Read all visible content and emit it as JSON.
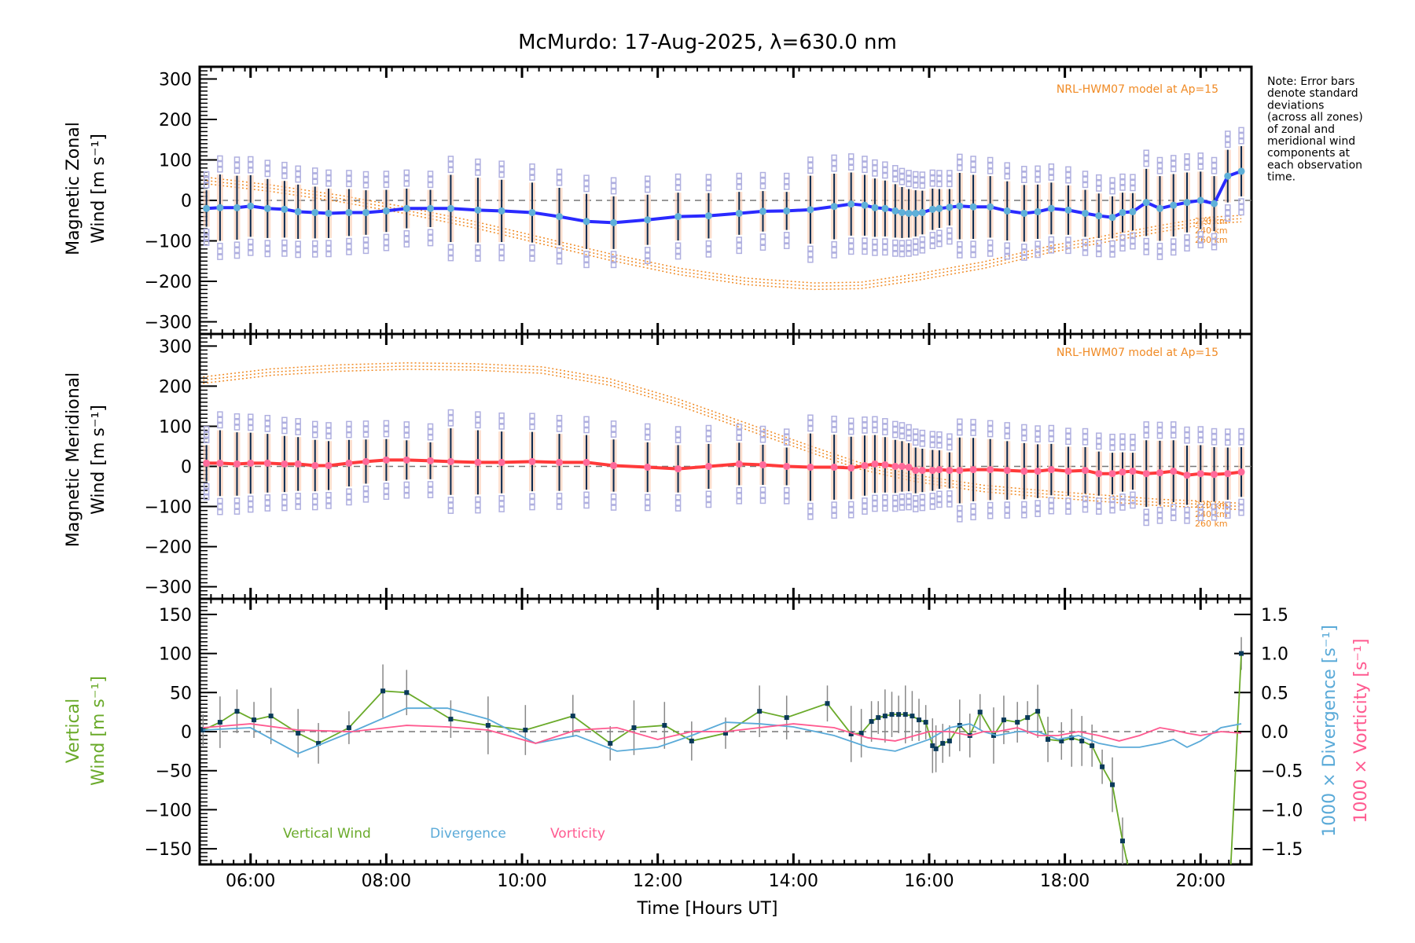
{
  "chart_data": [
    {
      "id": "zonal",
      "type": "line",
      "title": "McMurdo: 17-Aug-2025, λ=630.0 nm",
      "ylabel_line1": "Magnetic Zonal",
      "ylabel_line2": "Wind [m s⁻¹]",
      "ylim": [
        -330,
        330
      ],
      "yticks": [
        -300,
        -200,
        -100,
        0,
        100,
        200,
        300
      ],
      "model_label": "NRL-HWM07 model at Ap=15",
      "model_altitudes": [
        "220 km",
        "240 km",
        "260 km"
      ],
      "series_color": "#2a2aff",
      "marker_color": "#5fb0d8",
      "model_color": "#f08a24",
      "x": [
        5.35,
        5.55,
        5.8,
        6.0,
        6.25,
        6.5,
        6.7,
        6.95,
        7.15,
        7.45,
        7.7,
        8.0,
        8.3,
        8.65,
        8.95,
        9.35,
        9.7,
        10.15,
        10.55,
        10.95,
        11.35,
        11.85,
        12.3,
        12.75,
        13.2,
        13.55,
        13.9,
        14.25,
        14.6,
        14.85,
        15.05,
        15.2,
        15.35,
        15.5,
        15.6,
        15.7,
        15.8,
        15.9,
        16.05,
        16.15,
        16.3,
        16.45,
        16.65,
        16.9,
        17.15,
        17.4,
        17.6,
        17.8,
        18.05,
        18.3,
        18.5,
        18.7,
        18.85,
        19.0,
        19.2,
        19.4,
        19.6,
        19.8,
        20.0,
        20.2,
        20.4,
        20.6
      ],
      "y": [
        -20,
        -18,
        -18,
        -14,
        -20,
        -22,
        -28,
        -30,
        -32,
        -30,
        -30,
        -26,
        -20,
        -20,
        -20,
        -24,
        -26,
        -30,
        -40,
        -52,
        -55,
        -48,
        -40,
        -38,
        -32,
        -27,
        -26,
        -23,
        -15,
        -9,
        -12,
        -18,
        -20,
        -26,
        -30,
        -32,
        -32,
        -30,
        -22,
        -20,
        -17,
        -14,
        -16,
        -16,
        -26,
        -32,
        -28,
        -20,
        -24,
        -32,
        -38,
        -42,
        -30,
        -28,
        -5,
        -20,
        -12,
        -5,
        0,
        -8,
        60,
        72
      ],
      "model_y": [
        50,
        30,
        5,
        -25,
        -60,
        -100,
        -140,
        -175,
        -200,
        -212,
        -210,
        -190,
        -160,
        -120,
        -95,
        -70,
        -50,
        -45
      ],
      "model_x": [
        5.3,
        6.3,
        7.3,
        8.3,
        9.3,
        10.3,
        11.3,
        12.3,
        13.3,
        14.3,
        15.0,
        15.8,
        16.8,
        17.8,
        18.6,
        19.4,
        20.1,
        20.6
      ]
    },
    {
      "id": "meridional",
      "type": "line",
      "ylabel_line1": "Magnetic Meridional",
      "ylabel_line2": "Wind [m s⁻¹]",
      "ylim": [
        -330,
        330
      ],
      "yticks": [
        -300,
        -200,
        -100,
        0,
        100,
        200,
        300
      ],
      "model_label": "NRL-HWM07 model at Ap=15",
      "model_altitudes": [
        "220 km",
        "240 km",
        "260 km"
      ],
      "series_color": "#ff3a3a",
      "marker_color": "#ff6a9a",
      "model_color": "#f08a24",
      "x": [
        5.35,
        5.55,
        5.8,
        6.0,
        6.25,
        6.5,
        6.7,
        6.95,
        7.15,
        7.45,
        7.7,
        8.0,
        8.3,
        8.65,
        8.95,
        9.35,
        9.7,
        10.15,
        10.55,
        10.95,
        11.35,
        11.85,
        12.3,
        12.75,
        13.2,
        13.55,
        13.9,
        14.25,
        14.6,
        14.85,
        15.05,
        15.2,
        15.35,
        15.5,
        15.6,
        15.7,
        15.8,
        15.9,
        16.05,
        16.15,
        16.3,
        16.45,
        16.65,
        16.9,
        17.15,
        17.4,
        17.6,
        17.8,
        18.05,
        18.3,
        18.5,
        18.7,
        18.85,
        19.0,
        19.2,
        19.4,
        19.6,
        19.8,
        20.0,
        20.2,
        20.4,
        20.6
      ],
      "y": [
        8,
        8,
        6,
        8,
        8,
        6,
        6,
        2,
        2,
        8,
        12,
        16,
        16,
        14,
        12,
        10,
        10,
        12,
        10,
        10,
        2,
        -2,
        -6,
        0,
        6,
        4,
        0,
        -2,
        -2,
        -4,
        2,
        6,
        4,
        0,
        0,
        -2,
        -10,
        -10,
        -10,
        -8,
        -10,
        -10,
        -8,
        -8,
        -10,
        -12,
        -12,
        -8,
        -12,
        -10,
        -18,
        -18,
        -14,
        -12,
        -18,
        -16,
        -12,
        -22,
        -18,
        -20,
        -18,
        -14
      ],
      "model_y": [
        215,
        235,
        245,
        250,
        248,
        240,
        210,
        160,
        100,
        40,
        0,
        -30,
        -55,
        -70,
        -80,
        -90,
        -95,
        -100
      ],
      "model_x": [
        5.3,
        6.3,
        7.3,
        8.3,
        9.3,
        10.3,
        11.3,
        12.3,
        13.3,
        14.3,
        15.0,
        15.8,
        16.8,
        17.8,
        18.6,
        19.4,
        20.1,
        20.6
      ]
    },
    {
      "id": "vertical",
      "type": "line",
      "xlabel": "Time [Hours UT]",
      "xticks": [
        "06:00",
        "08:00",
        "10:00",
        "12:00",
        "14:00",
        "16:00",
        "18:00",
        "20:00"
      ],
      "xtick_hours": [
        6,
        8,
        10,
        12,
        14,
        16,
        18,
        20
      ],
      "xlim": [
        5.25,
        20.75
      ],
      "ylabel_line1": "Vertical",
      "ylabel_line2": "Wind [m s⁻¹]",
      "ylim": [
        -170,
        170
      ],
      "yticks": [
        -150,
        -100,
        -50,
        0,
        50,
        100,
        150
      ],
      "y2label_div": "1000 × Divergence [s⁻¹]",
      "y2label_vort": "1000 × Vorticity [s⁻¹]",
      "y2lim": [
        -1.7,
        1.7
      ],
      "y2ticks": [
        -1.5,
        -1.0,
        -0.5,
        0.0,
        0.5,
        1.0,
        1.5
      ],
      "legend": [
        {
          "name": "Vertical Wind",
          "color": "#6aaa2a"
        },
        {
          "name": "Divergence",
          "color": "#5aaad8"
        },
        {
          "name": "Vorticity",
          "color": "#ff5a90"
        }
      ],
      "series": [
        {
          "name": "Vertical Wind",
          "x": [
            5.3,
            5.55,
            5.8,
            6.05,
            6.3,
            6.7,
            7.0,
            7.45,
            7.95,
            8.3,
            8.95,
            9.5,
            10.05,
            10.75,
            11.3,
            11.65,
            12.1,
            12.5,
            13.0,
            13.5,
            13.9,
            14.5,
            14.85,
            15.0,
            15.15,
            15.25,
            15.35,
            15.45,
            15.55,
            15.65,
            15.75,
            15.85,
            15.95,
            16.05,
            16.1,
            16.2,
            16.3,
            16.45,
            16.6,
            16.75,
            16.95,
            17.1,
            17.3,
            17.45,
            17.6,
            17.75,
            17.95,
            18.1,
            18.25,
            18.4,
            18.55,
            18.7,
            18.85,
            19.0,
            19.2,
            19.4,
            19.6,
            19.8,
            20.0,
            20.2,
            20.4,
            20.6
          ],
          "y": [
            2,
            12,
            26,
            15,
            20,
            -2,
            -15,
            5,
            52,
            50,
            16,
            8,
            2,
            20,
            -15,
            5,
            8,
            -12,
            -2,
            26,
            18,
            36,
            -3,
            -2,
            13,
            18,
            20,
            22,
            22,
            22,
            20,
            15,
            12,
            -18,
            -22,
            -15,
            -12,
            8,
            -5,
            25,
            -5,
            15,
            12,
            18,
            26,
            -10,
            -12,
            -8,
            -12,
            -18,
            -45,
            -68,
            -140,
            -200,
            -230,
            -250,
            -250,
            -250,
            -250,
            -250,
            -250,
            100
          ],
          "color": "#6aaa2a"
        },
        {
          "name": "Divergence",
          "x": [
            5.3,
            6.0,
            6.7,
            7.5,
            8.3,
            8.9,
            9.5,
            10.2,
            10.8,
            11.4,
            12.0,
            12.5,
            13.0,
            13.5,
            14.0,
            14.6,
            15.1,
            15.5,
            16.0,
            16.3,
            16.6,
            16.8,
            17.0,
            17.3,
            17.6,
            17.9,
            18.2,
            18.5,
            18.8,
            19.1,
            19.4,
            19.6,
            19.8,
            20.0,
            20.3,
            20.6
          ],
          "y": [
            0.02,
            0.05,
            -0.28,
            0.0,
            0.3,
            0.3,
            0.16,
            -0.15,
            -0.05,
            -0.25,
            -0.2,
            -0.05,
            0.12,
            0.1,
            0.06,
            -0.05,
            -0.2,
            -0.25,
            -0.1,
            0.05,
            0.1,
            0.0,
            -0.05,
            0.0,
            0.0,
            -0.1,
            -0.05,
            -0.15,
            -0.2,
            -0.2,
            -0.15,
            -0.1,
            -0.2,
            -0.12,
            0.05,
            0.1
          ],
          "color": "#5aaad8"
        },
        {
          "name": "Vorticity",
          "x": [
            5.3,
            6.0,
            6.7,
            7.5,
            8.3,
            8.9,
            9.5,
            10.2,
            10.8,
            11.4,
            12.0,
            12.5,
            13.0,
            13.5,
            14.0,
            14.6,
            15.1,
            15.5,
            16.0,
            16.3,
            16.6,
            16.8,
            17.0,
            17.3,
            17.6,
            17.9,
            18.2,
            18.5,
            18.8,
            19.1,
            19.4,
            19.6,
            19.8,
            20.0,
            20.3,
            20.6
          ],
          "y": [
            0.05,
            0.1,
            0.02,
            0.0,
            0.08,
            0.06,
            0.02,
            -0.15,
            0.02,
            0.05,
            -0.1,
            0.0,
            0.0,
            0.05,
            0.1,
            0.05,
            -0.08,
            -0.12,
            0.0,
            0.0,
            -0.05,
            0.0,
            0.0,
            0.05,
            -0.05,
            -0.05,
            0.0,
            -0.05,
            -0.12,
            -0.05,
            0.05,
            0.02,
            -0.02,
            -0.05,
            0.0,
            -0.02
          ],
          "color": "#ff5a90"
        }
      ]
    }
  ],
  "note": [
    "Note: Error bars",
    "denote standard",
    "deviations",
    "(across all zones)",
    "of zonal and",
    "meridional wind",
    "components at",
    "each observation",
    "time."
  ]
}
